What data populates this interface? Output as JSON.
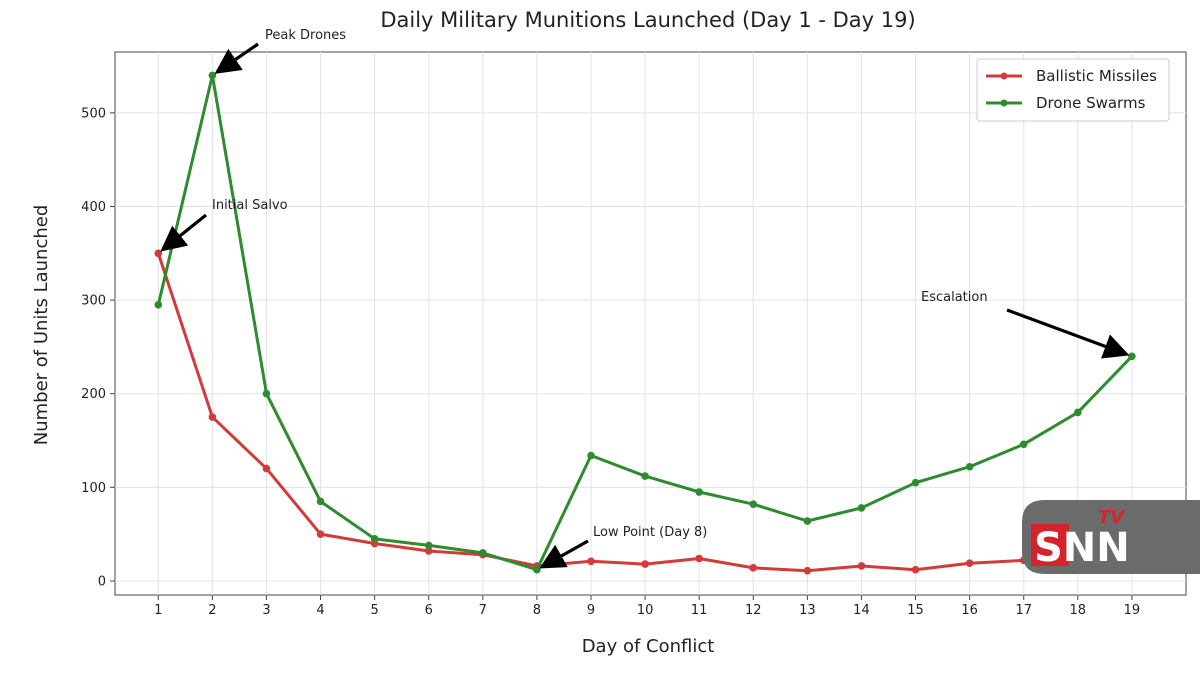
{
  "chart_data": {
    "type": "line",
    "title": "Daily Military Munitions Launched (Day 1 - Day 19)",
    "xlabel": "Day of Conflict",
    "ylabel": "Number of Units Launched",
    "x": [
      1,
      2,
      3,
      4,
      5,
      6,
      7,
      8,
      9,
      10,
      11,
      12,
      13,
      14,
      15,
      16,
      17,
      18,
      19
    ],
    "xlim": [
      0.2,
      20.0
    ],
    "ylim": [
      -15,
      565
    ],
    "yticks": [
      0,
      100,
      200,
      300,
      400,
      500
    ],
    "grid": true,
    "legend_position": "top-right",
    "series": [
      {
        "name": "Ballistic Missiles",
        "color": "#d33a3a",
        "values": [
          350,
          175,
          120,
          50,
          40,
          32,
          28,
          16,
          21,
          18,
          24,
          14,
          11,
          16,
          12,
          19,
          22,
          null,
          null
        ]
      },
      {
        "name": "Drone Swarms",
        "color": "#2e8b2e",
        "values": [
          295,
          540,
          200,
          85,
          45,
          38,
          30,
          12,
          134,
          112,
          95,
          82,
          64,
          78,
          105,
          122,
          146,
          180,
          240
        ]
      }
    ],
    "annotations": [
      {
        "text": "Peak Drones",
        "x": 2,
        "y": 540
      },
      {
        "text": "Initial Salvo",
        "x": 1,
        "y": 350
      },
      {
        "text": "Low Point (Day 8)",
        "x": 8,
        "y": 12
      },
      {
        "text": "Escalation",
        "x": 19,
        "y": 240
      }
    ]
  },
  "watermark": {
    "main": "SNN",
    "sub": "TV"
  }
}
